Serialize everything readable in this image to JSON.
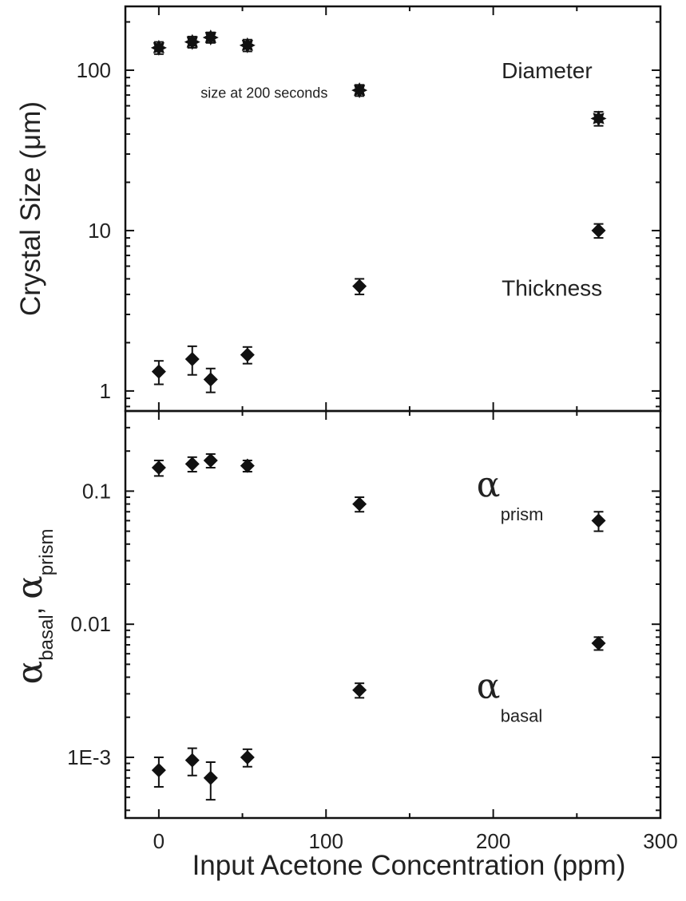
{
  "chart_data": {
    "type": "scatter",
    "x_axis": {
      "label": "Input Acetone Concentration (ppm)",
      "range": [
        -20,
        300
      ],
      "ticks": [
        0,
        100,
        200,
        300
      ],
      "tick_labels": [
        "0",
        "100",
        "200",
        "300"
      ]
    },
    "panels": [
      {
        "id": "top",
        "scale": "log",
        "y_range": [
          0.75,
          250
        ],
        "y_label": "Crystal Size (μm)",
        "y_ticks": [
          1,
          10,
          100
        ],
        "y_tick_labels": [
          "1",
          "10",
          "100"
        ],
        "annotations": [
          {
            "text": "Diameter",
            "x": 205,
            "y": 100
          },
          {
            "text": "Thickness",
            "x": 205,
            "y": 4.4
          },
          {
            "text": "size at 200 seconds",
            "x": 25,
            "y": 72
          }
        ],
        "series": [
          {
            "name": "Diameter",
            "marker": "star",
            "points": [
              {
                "x": 0,
                "y": 138,
                "err": 12
              },
              {
                "x": 20,
                "y": 150,
                "err": 12
              },
              {
                "x": 31,
                "y": 160,
                "err": 12
              },
              {
                "x": 53,
                "y": 143,
                "err": 12
              },
              {
                "x": 120,
                "y": 75,
                "err": 6
              },
              {
                "x": 263,
                "y": 50,
                "err": 5
              }
            ]
          },
          {
            "name": "Thickness",
            "marker": "diamond",
            "points": [
              {
                "x": 0,
                "y": 1.32,
                "err": 0.22
              },
              {
                "x": 20,
                "y": 1.58,
                "err": 0.32
              },
              {
                "x": 31,
                "y": 1.18,
                "err": 0.2
              },
              {
                "x": 53,
                "y": 1.68,
                "err": 0.2
              },
              {
                "x": 120,
                "y": 4.5,
                "err": 0.5
              },
              {
                "x": 263,
                "y": 10,
                "err": 1.0
              }
            ]
          }
        ]
      },
      {
        "id": "bottom",
        "scale": "log",
        "y_range": [
          0.00035,
          0.4
        ],
        "y_label_parts": [
          {
            "text": "α",
            "role": "greek"
          },
          {
            "text": "basal",
            "role": "sub"
          },
          {
            "text": ", ",
            "role": "plain"
          },
          {
            "text": "α",
            "role": "greek"
          },
          {
            "text": "prism",
            "role": "sub"
          }
        ],
        "y_ticks": [
          0.001,
          0.01,
          0.1
        ],
        "y_tick_labels": [
          "1E-3",
          "0.01",
          "0.1"
        ],
        "annotations": [
          {
            "greek": "α",
            "sub": "prism",
            "x": 190,
            "y": 0.105
          },
          {
            "greek": "α",
            "sub": "basal",
            "x": 190,
            "y": 0.0032
          }
        ],
        "series": [
          {
            "name": "α prism",
            "marker": "diamond",
            "points": [
              {
                "x": 0,
                "y": 0.15,
                "err": 0.02
              },
              {
                "x": 20,
                "y": 0.16,
                "err": 0.02
              },
              {
                "x": 31,
                "y": 0.17,
                "err": 0.02
              },
              {
                "x": 53,
                "y": 0.155,
                "err": 0.015
              },
              {
                "x": 120,
                "y": 0.08,
                "err": 0.01
              },
              {
                "x": 263,
                "y": 0.06,
                "err": 0.01
              }
            ]
          },
          {
            "name": "α basal",
            "marker": "diamond",
            "points": [
              {
                "x": 0,
                "y": 0.0008,
                "err": 0.0002
              },
              {
                "x": 20,
                "y": 0.00095,
                "err": 0.00022
              },
              {
                "x": 31,
                "y": 0.0007,
                "err": 0.00022
              },
              {
                "x": 53,
                "y": 0.001,
                "err": 0.00015
              },
              {
                "x": 120,
                "y": 0.0032,
                "err": 0.0004
              },
              {
                "x": 263,
                "y": 0.0072,
                "err": 0.0008
              }
            ]
          }
        ]
      }
    ],
    "grid": false,
    "legend": "none",
    "marker_color": "#111111",
    "axis_color": "#111111"
  }
}
